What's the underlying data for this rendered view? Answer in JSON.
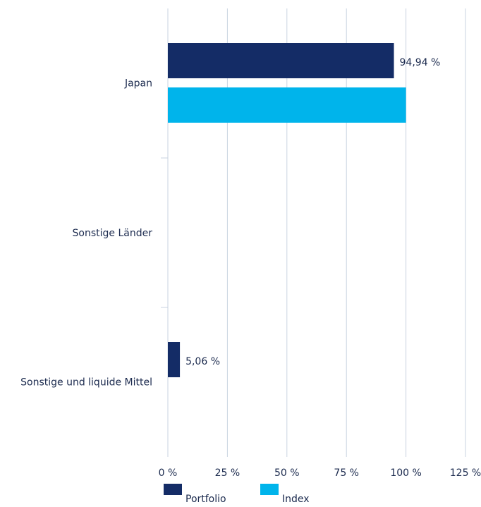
{
  "chart_data": {
    "type": "bar",
    "orientation": "horizontal",
    "title": "",
    "xlabel": "",
    "ylabel": "",
    "categories": [
      "Japan",
      "Sonstige Länder",
      "Sonstige und liquide Mittel"
    ],
    "series": [
      {
        "name": "Portfolio",
        "color": "#142c66",
        "values": [
          94.94,
          null,
          5.06
        ],
        "labels": [
          "94,94 %",
          "",
          "5,06 %"
        ]
      },
      {
        "name": "Index",
        "color": "#00b4eb",
        "values": [
          100,
          null,
          null
        ],
        "labels": [
          "",
          "",
          ""
        ]
      }
    ],
    "xlim": [
      0,
      125
    ],
    "ticks": [
      0,
      25,
      50,
      75,
      100,
      125
    ],
    "tick_labels": [
      "0 %",
      "25 %",
      "50 %",
      "75 %",
      "100 %",
      "125 %"
    ],
    "grid": true,
    "legend_position": "bottom-center"
  }
}
